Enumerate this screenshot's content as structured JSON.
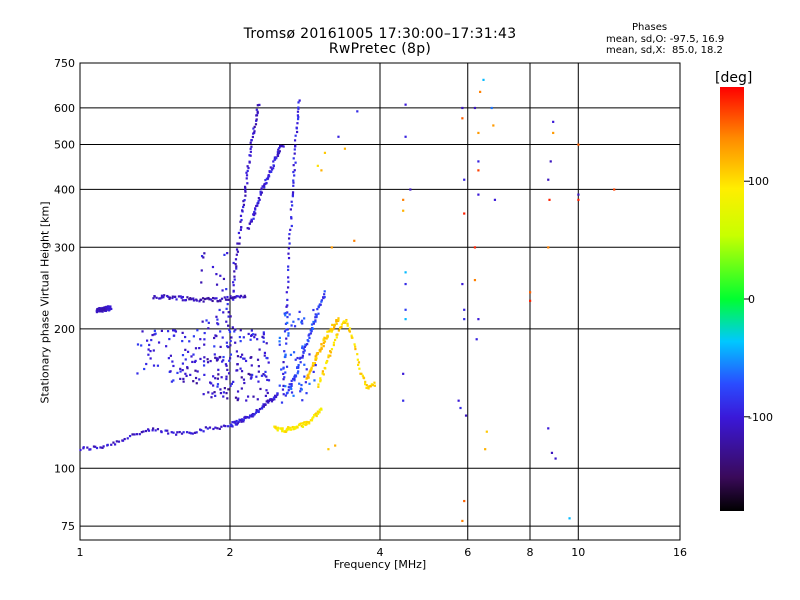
{
  "header": {
    "title": "Tromsø 20161005 17:30:00–17:31:43",
    "subtitle": "RwPretec (8p)"
  },
  "stats": {
    "heading": "Phases",
    "line_o": "mean, sd,O: -97.5, 16.9",
    "line_x": "mean, sd,X:  85.0, 18.2"
  },
  "colorbar": {
    "unit_label": "[deg]",
    "ticks": [
      "100",
      "0",
      "-100"
    ],
    "tick_values": [
      100,
      0,
      -100
    ],
    "range": [
      -180,
      180
    ]
  },
  "chart_data": {
    "type": "scatter",
    "xlabel": "Frequency [MHz]",
    "ylabel": "Stationary phase Virtual Height [km]",
    "xscale": "log",
    "yscale": "log",
    "xlim": [
      1,
      16
    ],
    "ylim": [
      70,
      750
    ],
    "x_ticks": [
      1,
      2,
      4,
      6,
      8,
      10,
      16
    ],
    "x_tick_labels": [
      "1",
      "2",
      "4",
      "6",
      "8",
      "10",
      "16"
    ],
    "y_ticks": [
      75,
      100,
      200,
      300,
      400,
      500,
      600,
      750
    ],
    "y_tick_labels": [
      "75",
      "100",
      "200",
      "300",
      "400",
      "500",
      "600",
      "750"
    ],
    "grid": true,
    "color_by": "phase [deg]",
    "traces": [
      {
        "x0": 1.0,
        "x1": 2.0,
        "h": [
          110,
          111,
          114,
          119,
          121,
          119,
          120,
          122,
          124
        ],
        "phase": -105
      },
      {
        "x0": 2.0,
        "x1": 2.5,
        "h": [
          124,
          127,
          131,
          138,
          145
        ],
        "phase": -100
      },
      {
        "x0": 1.08,
        "x1": 1.15,
        "h": [
          219,
          222
        ],
        "phase": -110
      },
      {
        "x0": 1.4,
        "x1": 2.15,
        "h": [
          235,
          234,
          231,
          232,
          236
        ],
        "phase": -110
      },
      {
        "x0": 2.02,
        "x1": 2.28,
        "h": [
          230,
          280,
          340,
          400,
          470,
          540,
          610
        ],
        "phase": -105
      },
      {
        "x0": 2.18,
        "x1": 2.55,
        "h": [
          330,
          360,
          400,
          430,
          470,
          500
        ],
        "phase": -100
      },
      {
        "x0": 2.55,
        "x1": 2.75,
        "h": [
          140,
          180,
          230,
          300,
          380,
          450,
          540,
          620
        ],
        "phase": -95
      },
      {
        "x0": 2.6,
        "x1": 3.1,
        "h": [
          145,
          160,
          185,
          210,
          240
        ],
        "phase": -80
      },
      {
        "x0": 2.45,
        "x1": 3.05,
        "h": [
          122,
          121,
          123,
          126,
          135
        ],
        "phase": 95
      },
      {
        "x0": 3.0,
        "x1": 3.9,
        "h": [
          150,
          165,
          180,
          200,
          210,
          190,
          160,
          150,
          152
        ],
        "phase": 105
      },
      {
        "x0": 2.85,
        "x1": 3.3,
        "h": [
          155,
          175,
          195,
          210
        ],
        "phase": 110
      }
    ],
    "clusters": [
      {
        "x": [
          1.3,
          2.4
        ],
        "h": [
          150,
          200
        ],
        "phase": -95,
        "n": 140
      },
      {
        "x": [
          1.6,
          2.4
        ],
        "h": [
          140,
          175
        ],
        "phase": -110,
        "n": 80
      },
      {
        "x": [
          1.75,
          2.05
        ],
        "h": [
          180,
          300
        ],
        "phase": -100,
        "n": 40
      },
      {
        "x": [
          2.5,
          3.0
        ],
        "h": [
          140,
          220
        ],
        "phase": -75,
        "n": 60
      }
    ],
    "scatter_points": [
      {
        "x": 4.5,
        "h": 610,
        "p": -100
      },
      {
        "x": 4.5,
        "h": 520,
        "p": -95
      },
      {
        "x": 4.6,
        "h": 400,
        "p": -110
      },
      {
        "x": 4.45,
        "h": 380,
        "p": 140
      },
      {
        "x": 4.45,
        "h": 360,
        "p": 120
      },
      {
        "x": 4.5,
        "h": 265,
        "p": -40
      },
      {
        "x": 4.5,
        "h": 250,
        "p": -90
      },
      {
        "x": 4.5,
        "h": 220,
        "p": -80
      },
      {
        "x": 4.5,
        "h": 210,
        "p": -40
      },
      {
        "x": 4.45,
        "h": 160,
        "p": -100
      },
      {
        "x": 4.45,
        "h": 140,
        "p": -90
      },
      {
        "x": 5.85,
        "h": 600,
        "p": -110
      },
      {
        "x": 5.85,
        "h": 570,
        "p": 150
      },
      {
        "x": 5.9,
        "h": 420,
        "p": -95
      },
      {
        "x": 5.9,
        "h": 355,
        "p": 170
      },
      {
        "x": 5.85,
        "h": 250,
        "p": -100
      },
      {
        "x": 5.9,
        "h": 220,
        "p": -95
      },
      {
        "x": 5.9,
        "h": 210,
        "p": -90
      },
      {
        "x": 5.75,
        "h": 140,
        "p": -100
      },
      {
        "x": 5.8,
        "h": 135,
        "p": -90
      },
      {
        "x": 5.95,
        "h": 130,
        "p": -110
      },
      {
        "x": 5.9,
        "h": 85,
        "p": 150
      },
      {
        "x": 5.85,
        "h": 77,
        "p": 140
      },
      {
        "x": 6.2,
        "h": 600,
        "p": -110
      },
      {
        "x": 6.3,
        "h": 530,
        "p": 130
      },
      {
        "x": 6.3,
        "h": 460,
        "p": -95
      },
      {
        "x": 6.3,
        "h": 440,
        "p": 160
      },
      {
        "x": 6.3,
        "h": 390,
        "p": -100
      },
      {
        "x": 6.2,
        "h": 300,
        "p": 170
      },
      {
        "x": 6.2,
        "h": 255,
        "p": 140
      },
      {
        "x": 6.3,
        "h": 210,
        "p": -100
      },
      {
        "x": 6.25,
        "h": 190,
        "p": -95
      },
      {
        "x": 6.45,
        "h": 690,
        "p": -40
      },
      {
        "x": 6.35,
        "h": 650,
        "p": 140
      },
      {
        "x": 6.5,
        "h": 110,
        "p": 120
      },
      {
        "x": 6.7,
        "h": 600,
        "p": -60
      },
      {
        "x": 6.75,
        "h": 550,
        "p": 130
      },
      {
        "x": 6.8,
        "h": 380,
        "p": -100
      },
      {
        "x": 6.55,
        "h": 120,
        "p": 110
      },
      {
        "x": 8.0,
        "h": 240,
        "p": 150
      },
      {
        "x": 8.0,
        "h": 230,
        "p": 170
      },
      {
        "x": 8.7,
        "h": 420,
        "p": -110
      },
      {
        "x": 8.75,
        "h": 380,
        "p": 170
      },
      {
        "x": 8.7,
        "h": 300,
        "p": 140
      },
      {
        "x": 8.9,
        "h": 560,
        "p": -100
      },
      {
        "x": 8.9,
        "h": 530,
        "p": 130
      },
      {
        "x": 8.8,
        "h": 460,
        "p": -110
      },
      {
        "x": 8.7,
        "h": 122,
        "p": -100
      },
      {
        "x": 8.85,
        "h": 108,
        "p": -110
      },
      {
        "x": 9.0,
        "h": 105,
        "p": -105
      },
      {
        "x": 9.6,
        "h": 78,
        "p": -40
      },
      {
        "x": 10.0,
        "h": 500,
        "p": 150
      },
      {
        "x": 10.0,
        "h": 390,
        "p": -110
      },
      {
        "x": 10.0,
        "h": 380,
        "p": 170
      },
      {
        "x": 11.8,
        "h": 400,
        "p": 160
      },
      {
        "x": 3.6,
        "h": 590,
        "p": -90
      },
      {
        "x": 3.3,
        "h": 520,
        "p": -95
      },
      {
        "x": 3.4,
        "h": 490,
        "p": 120
      },
      {
        "x": 3.1,
        "h": 480,
        "p": 110
      },
      {
        "x": 3.05,
        "h": 440,
        "p": 120
      },
      {
        "x": 3.0,
        "h": 450,
        "p": 100
      },
      {
        "x": 3.2,
        "h": 300,
        "p": 130
      },
      {
        "x": 3.15,
        "h": 110,
        "p": 110
      },
      {
        "x": 3.25,
        "h": 112,
        "p": 120
      },
      {
        "x": 3.55,
        "h": 310,
        "p": 140
      }
    ]
  }
}
